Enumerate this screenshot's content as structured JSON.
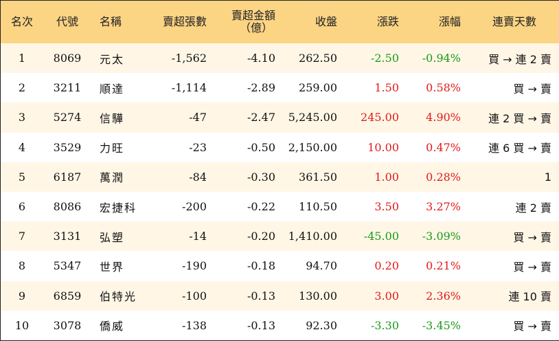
{
  "headers": {
    "rank": "名次",
    "code": "代號",
    "name": "名稱",
    "net_sell_shares": "賣超張數",
    "net_sell_amount_line1": "賣超金額",
    "net_sell_amount_line2": "（億）",
    "close": "收盤",
    "change": "漲跌",
    "change_pct": "漲幅",
    "streak": "連賣天數"
  },
  "colors": {
    "header_bg": "#fbd484",
    "row_alt_bg": "#fff6e6",
    "up": "#e31919",
    "down": "#1a9a1a"
  },
  "rows": [
    {
      "rank": "1",
      "code": "8069",
      "name": "元太",
      "shares": "-1,562",
      "amount": "-4.10",
      "close": "262.50",
      "change": "-2.50",
      "pct": "-0.94%",
      "streak": "買 → 連 2 賣",
      "trend": "down"
    },
    {
      "rank": "2",
      "code": "3211",
      "name": "順達",
      "shares": "-1,114",
      "amount": "-2.89",
      "close": "259.00",
      "change": "1.50",
      "pct": "0.58%",
      "streak": "買 → 賣",
      "trend": "up"
    },
    {
      "rank": "3",
      "code": "5274",
      "name": "信驊",
      "shares": "-47",
      "amount": "-2.47",
      "close": "5,245.00",
      "change": "245.00",
      "pct": "4.90%",
      "streak": "連 2 買 → 賣",
      "trend": "up"
    },
    {
      "rank": "4",
      "code": "3529",
      "name": "力旺",
      "shares": "-23",
      "amount": "-0.50",
      "close": "2,150.00",
      "change": "10.00",
      "pct": "0.47%",
      "streak": "連 6 買 → 賣",
      "trend": "up"
    },
    {
      "rank": "5",
      "code": "6187",
      "name": "萬潤",
      "shares": "-84",
      "amount": "-0.30",
      "close": "361.50",
      "change": "1.00",
      "pct": "0.28%",
      "streak": "1",
      "trend": "up"
    },
    {
      "rank": "6",
      "code": "8086",
      "name": "宏捷科",
      "shares": "-200",
      "amount": "-0.22",
      "close": "110.50",
      "change": "3.50",
      "pct": "3.27%",
      "streak": "連 2 賣",
      "trend": "up"
    },
    {
      "rank": "7",
      "code": "3131",
      "name": "弘塑",
      "shares": "-14",
      "amount": "-0.20",
      "close": "1,410.00",
      "change": "-45.00",
      "pct": "-3.09%",
      "streak": "買 → 賣",
      "trend": "down"
    },
    {
      "rank": "8",
      "code": "5347",
      "name": "世界",
      "shares": "-190",
      "amount": "-0.18",
      "close": "94.70",
      "change": "0.20",
      "pct": "0.21%",
      "streak": "買 → 賣",
      "trend": "up"
    },
    {
      "rank": "9",
      "code": "6859",
      "name": "伯特光",
      "shares": "-100",
      "amount": "-0.13",
      "close": "130.00",
      "change": "3.00",
      "pct": "2.36%",
      "streak": "連 10 賣",
      "trend": "up"
    },
    {
      "rank": "10",
      "code": "3078",
      "name": "僑威",
      "shares": "-138",
      "amount": "-0.13",
      "close": "92.30",
      "change": "-3.30",
      "pct": "-3.45%",
      "streak": "買 → 賣",
      "trend": "down"
    }
  ]
}
